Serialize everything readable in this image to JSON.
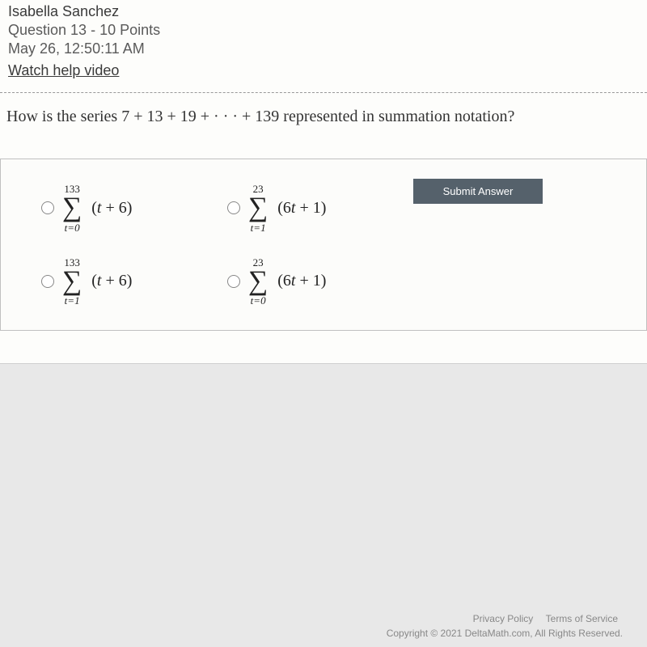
{
  "header": {
    "student_name": "Isabella Sanchez",
    "question_line": "Question 13 - 10 Points",
    "timestamp": "May 26, 12:50:11 AM",
    "help_link": "Watch help video"
  },
  "question_text": "How is the series 7 + 13 + 19 + · · · + 139 represented in summation notation?",
  "options": [
    {
      "upper": "133",
      "lower_var": "t",
      "lower_eq": "=0",
      "expr_before": "(",
      "expr_var": "t",
      "expr_after": " + 6)"
    },
    {
      "upper": "23",
      "lower_var": "t",
      "lower_eq": "=1",
      "expr_before": "(6",
      "expr_var": "t",
      "expr_after": " + 1)"
    },
    {
      "upper": "133",
      "lower_var": "t",
      "lower_eq": "=1",
      "expr_before": "(",
      "expr_var": "t",
      "expr_after": " + 6)"
    },
    {
      "upper": "23",
      "lower_var": "t",
      "lower_eq": "=0",
      "expr_before": "(6",
      "expr_var": "t",
      "expr_after": " + 1)"
    }
  ],
  "submit_label": "Submit Answer",
  "footer": {
    "privacy": "Privacy Policy",
    "terms": "Terms of Service",
    "copyright": "Copyright © 2021 DeltaMath.com, All Rights Reserved."
  },
  "colors": {
    "page_bg": "#e8e8e8",
    "card_bg": "#fdfdfb",
    "submit_bg": "#55616b"
  }
}
